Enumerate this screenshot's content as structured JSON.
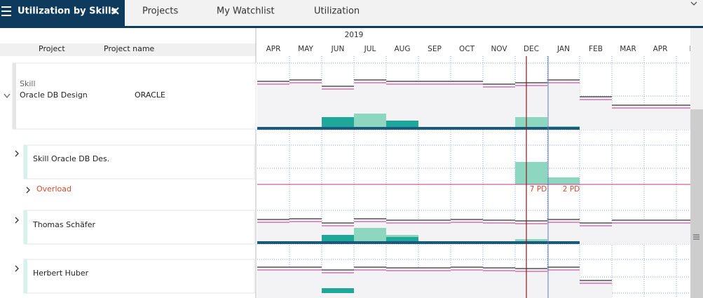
{
  "tabs": [
    "Utilization by Skills",
    "Projects",
    "My Watchlist",
    "Utilization"
  ],
  "table": {
    "headers": [
      "Project",
      "Project name"
    ]
  },
  "timeline": {
    "year": "2019",
    "months": [
      "APR",
      "MAY",
      "JUN",
      "JUL",
      "AUG",
      "SEP",
      "OCT",
      "NOV",
      "DEC",
      "JAN",
      "FEB",
      "MAR",
      "APR",
      "M"
    ]
  },
  "rows": [
    {
      "type_label": "Skill",
      "label": "Oracle DB Design",
      "project_name": "ORACLE"
    },
    {
      "label": "Skill Oracle DB Des.",
      "sub_label": "Overload",
      "annotations": [
        "7 PD",
        "2 PD"
      ]
    },
    {
      "label": "Thomas Schäfer"
    },
    {
      "label": "Herbert Huber"
    }
  ]
}
